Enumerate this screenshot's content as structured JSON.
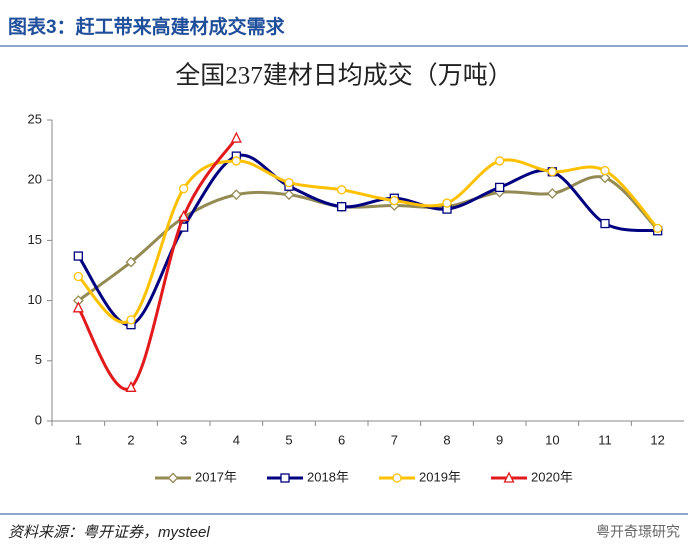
{
  "header": {
    "title": "图表3：赶工带来高建材成交需求"
  },
  "chart_data": {
    "type": "line",
    "title": "全国237建材日均成交（万吨）",
    "categories": [
      "1",
      "2",
      "3",
      "4",
      "5",
      "6",
      "7",
      "8",
      "9",
      "10",
      "11",
      "12"
    ],
    "series": [
      {
        "name": "2017年",
        "color": "#948a54",
        "marker": "diamond",
        "values": [
          10,
          13.2,
          16.9,
          18.8,
          18.8,
          17.8,
          17.9,
          17.8,
          19.0,
          18.9,
          20.2,
          15.9
        ]
      },
      {
        "name": "2018年",
        "color": "#000080",
        "marker": "square",
        "values": [
          13.7,
          8.0,
          16.1,
          22.0,
          19.5,
          17.8,
          18.5,
          17.6,
          19.4,
          20.7,
          16.4,
          15.8
        ]
      },
      {
        "name": "2019年",
        "color": "#ffc000",
        "marker": "circle",
        "values": [
          12.0,
          8.4,
          19.3,
          21.6,
          19.8,
          19.2,
          18.3,
          18.1,
          21.6,
          20.7,
          20.8,
          16.0
        ]
      },
      {
        "name": "2020年",
        "color": "#e31a1c",
        "marker": "triangle",
        "values": [
          9.4,
          2.8,
          17.0,
          23.5,
          null,
          null,
          null,
          null,
          null,
          null,
          null,
          null
        ]
      }
    ],
    "ylim": [
      0,
      25
    ],
    "yticks": [
      0,
      5,
      10,
      15,
      20,
      25
    ],
    "smooth": true,
    "legend": "bottom"
  },
  "footer": {
    "source": "资料来源：粤开证券，mysteel",
    "watermark": "粤开奇璟研究"
  }
}
